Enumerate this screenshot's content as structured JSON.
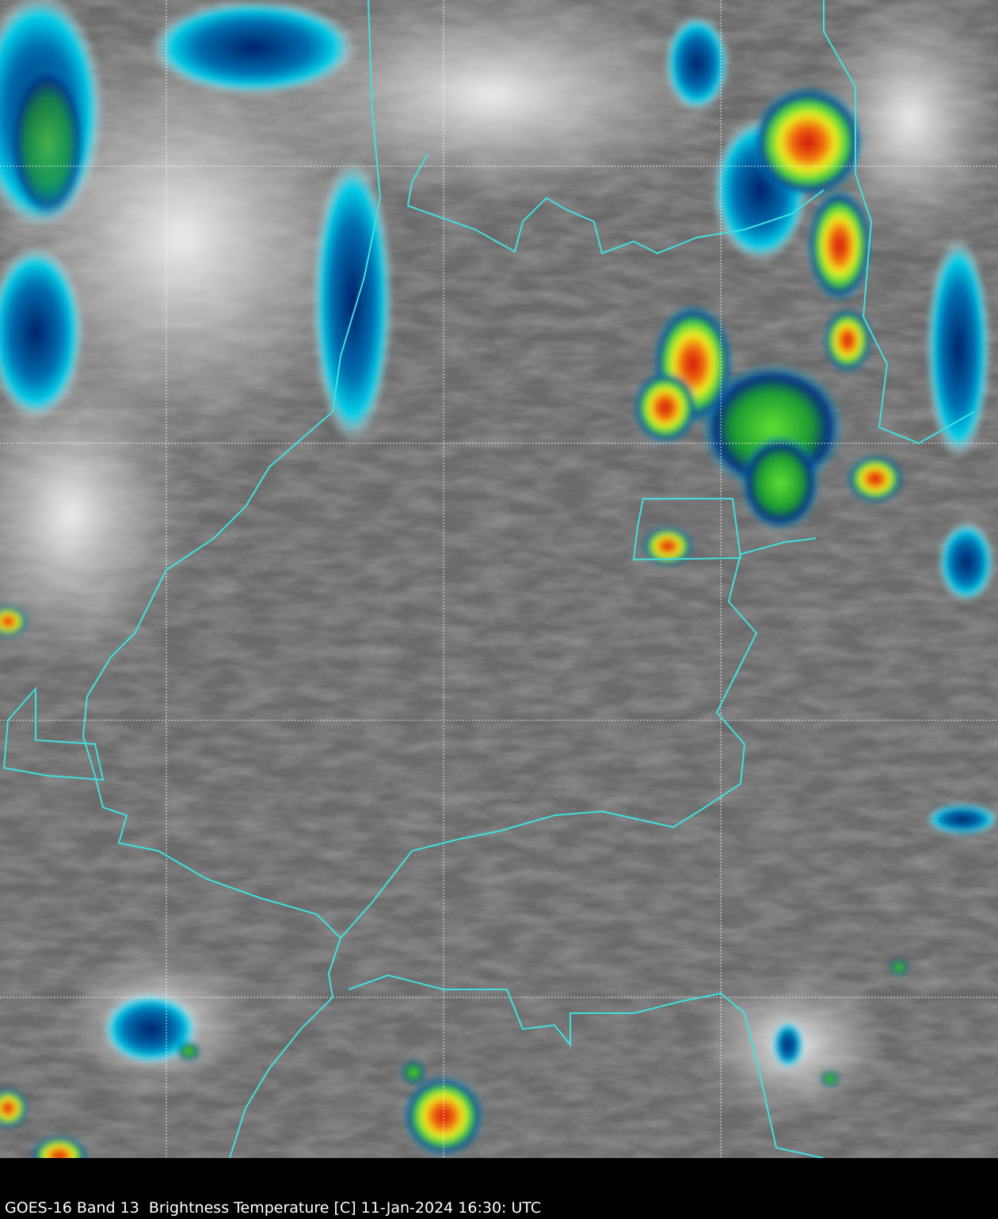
{
  "caption": "GOES-16 Band 13  Brightness Temperature [C] 11-Jan-2024 16:30: UTC",
  "colors": {
    "background_gray": "#6e6e6e",
    "border": "#40e0e0",
    "gridline": "#ffffff",
    "cold_cloud_cyan": "#00c8e6",
    "deep_blue": "#002a80",
    "green": "#2fd03a",
    "yellow": "#f0f020",
    "red": "#e02010"
  }
}
